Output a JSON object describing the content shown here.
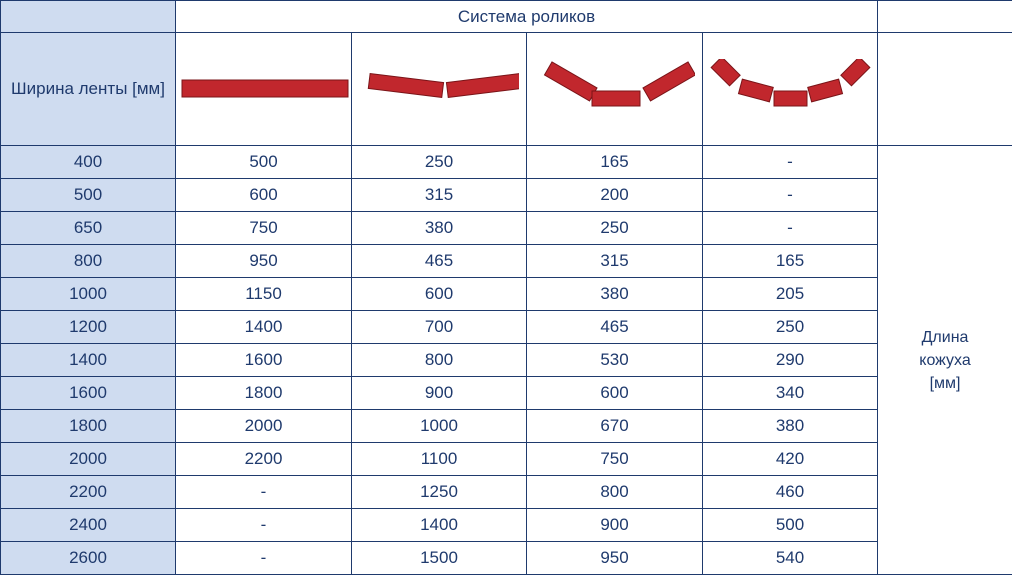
{
  "header": {
    "system_title": "Система роликов",
    "width_label": "Ширина ленты [мм]"
  },
  "side_label": [
    "Длина",
    "кожуха",
    "[мм]"
  ],
  "icons": [
    "flat-roller-icon",
    "two-roller-trough-icon",
    "three-roller-trough-icon",
    "five-roller-trough-icon"
  ],
  "colors": {
    "border": "#1f3a6d",
    "text": "#1f3a6d",
    "first_col_bg": "#cfdcf0",
    "roller": "#c1272d"
  },
  "rows": [
    [
      "400",
      "500",
      "250",
      "165",
      "-"
    ],
    [
      "500",
      "600",
      "315",
      "200",
      "-"
    ],
    [
      "650",
      "750",
      "380",
      "250",
      "-"
    ],
    [
      "800",
      "950",
      "465",
      "315",
      "165"
    ],
    [
      "1000",
      "1150",
      "600",
      "380",
      "205"
    ],
    [
      "1200",
      "1400",
      "700",
      "465",
      "250"
    ],
    [
      "1400",
      "1600",
      "800",
      "530",
      "290"
    ],
    [
      "1600",
      "1800",
      "900",
      "600",
      "340"
    ],
    [
      "1800",
      "2000",
      "1000",
      "670",
      "380"
    ],
    [
      "2000",
      "2200",
      "1100",
      "750",
      "420"
    ],
    [
      "2200",
      "-",
      "1250",
      "800",
      "460"
    ],
    [
      "2400",
      "-",
      "1400",
      "900",
      "500"
    ],
    [
      "2600",
      "-",
      "1500",
      "950",
      "540"
    ]
  ]
}
